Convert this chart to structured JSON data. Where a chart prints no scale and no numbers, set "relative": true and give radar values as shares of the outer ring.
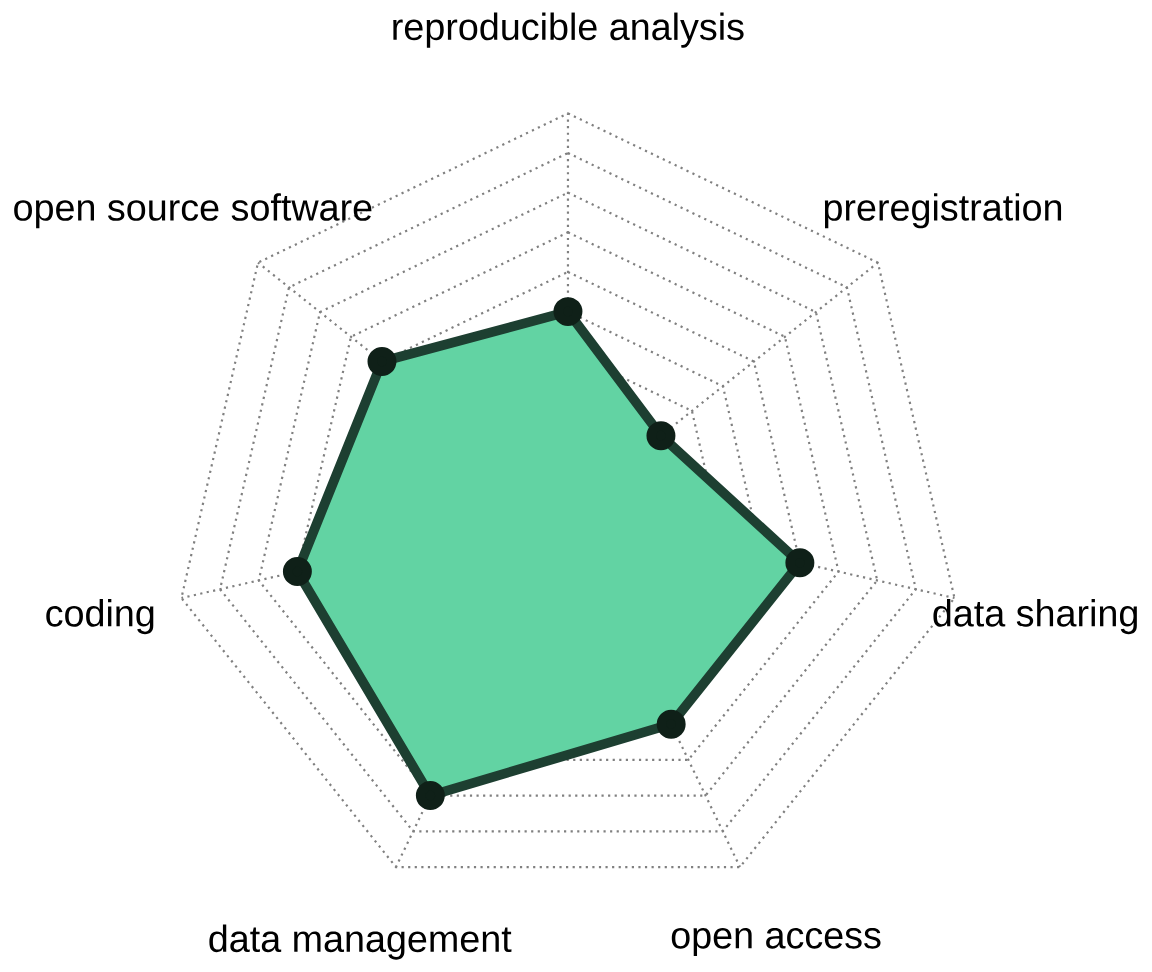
{
  "chart_data": {
    "type": "radar",
    "relative": true,
    "grid": true,
    "marker": "circle",
    "categories": [
      "reproducible analysis",
      "preregistration",
      "data sharing",
      "open access",
      "data management",
      "coding",
      "open source software"
    ],
    "series": [
      {
        "color": "#62d3a3",
        "values": [
          0.5,
          0.3,
          0.6,
          0.6,
          0.8,
          0.7,
          0.6
        ]
      }
    ]
  }
}
